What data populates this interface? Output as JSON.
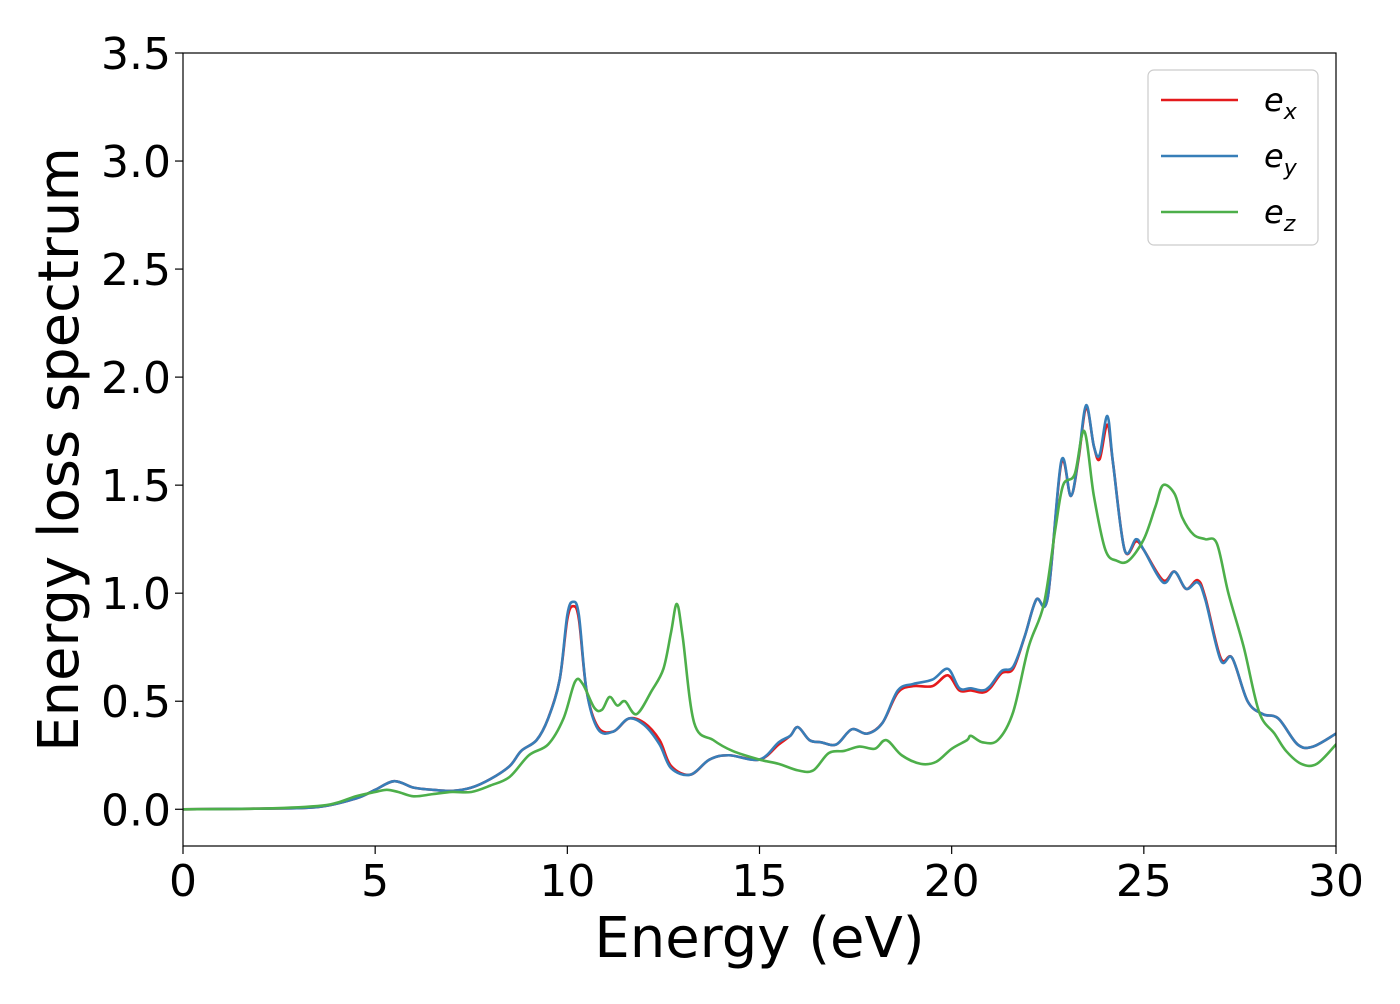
{
  "chart_data": {
    "type": "line",
    "xlabel": "Energy (eV)",
    "ylabel": "Energy loss spectrum",
    "xlim": [
      0,
      30
    ],
    "ylim": [
      -0.17,
      3.5
    ],
    "xticks": [
      0,
      5,
      10,
      15,
      20,
      25,
      30
    ],
    "yticks": [
      0.0,
      0.5,
      1.0,
      1.5,
      2.0,
      2.5,
      3.0,
      3.5
    ],
    "xtick_labels": [
      "0",
      "5",
      "10",
      "15",
      "20",
      "25",
      "30"
    ],
    "ytick_labels": [
      "0.0",
      "0.5",
      "1.0",
      "1.5",
      "2.0",
      "2.5",
      "3.0",
      "3.5"
    ],
    "grid": false,
    "legend": {
      "position": "top-right",
      "entries": [
        {
          "base": "e",
          "sub": "x",
          "color": "#e41a1c"
        },
        {
          "base": "e",
          "sub": "y",
          "color": "#377eb8"
        },
        {
          "base": "e",
          "sub": "z",
          "color": "#4daf4a"
        }
      ]
    },
    "series": [
      {
        "name": "e_x",
        "color": "#e41a1c",
        "points": [
          [
            0,
            0
          ],
          [
            2,
            0.003
          ],
          [
            3.5,
            0.01
          ],
          [
            4.5,
            0.05
          ],
          [
            5,
            0.09
          ],
          [
            5.5,
            0.13
          ],
          [
            6,
            0.1
          ],
          [
            6.5,
            0.09
          ],
          [
            7,
            0.085
          ],
          [
            7.5,
            0.1
          ],
          [
            8,
            0.14
          ],
          [
            8.5,
            0.2
          ],
          [
            8.8,
            0.27
          ],
          [
            9.2,
            0.32
          ],
          [
            9.5,
            0.42
          ],
          [
            9.8,
            0.6
          ],
          [
            10.0,
            0.88
          ],
          [
            10.15,
            0.94
          ],
          [
            10.3,
            0.88
          ],
          [
            10.5,
            0.55
          ],
          [
            10.8,
            0.38
          ],
          [
            11.2,
            0.36
          ],
          [
            11.6,
            0.42
          ],
          [
            12.0,
            0.4
          ],
          [
            12.4,
            0.32
          ],
          [
            12.7,
            0.2
          ],
          [
            13.2,
            0.16
          ],
          [
            13.7,
            0.23
          ],
          [
            14.2,
            0.25
          ],
          [
            15.0,
            0.23
          ],
          [
            15.5,
            0.3
          ],
          [
            15.8,
            0.34
          ],
          [
            16.0,
            0.38
          ],
          [
            16.3,
            0.32
          ],
          [
            16.6,
            0.31
          ],
          [
            17.0,
            0.3
          ],
          [
            17.4,
            0.37
          ],
          [
            17.8,
            0.35
          ],
          [
            18.2,
            0.4
          ],
          [
            18.6,
            0.54
          ],
          [
            19.0,
            0.57
          ],
          [
            19.5,
            0.57
          ],
          [
            19.9,
            0.62
          ],
          [
            20.2,
            0.55
          ],
          [
            20.5,
            0.55
          ],
          [
            20.8,
            0.54
          ],
          [
            21.0,
            0.56
          ],
          [
            21.3,
            0.63
          ],
          [
            21.6,
            0.65
          ],
          [
            21.9,
            0.8
          ],
          [
            22.2,
            0.97
          ],
          [
            22.5,
            0.98
          ],
          [
            22.85,
            1.6
          ],
          [
            23.1,
            1.45
          ],
          [
            23.3,
            1.62
          ],
          [
            23.5,
            1.86
          ],
          [
            23.7,
            1.68
          ],
          [
            23.85,
            1.62
          ],
          [
            24.05,
            1.78
          ],
          [
            24.2,
            1.6
          ],
          [
            24.5,
            1.2
          ],
          [
            24.8,
            1.24
          ],
          [
            25.0,
            1.2
          ],
          [
            25.5,
            1.06
          ],
          [
            25.8,
            1.1
          ],
          [
            26.1,
            1.02
          ],
          [
            26.4,
            1.06
          ],
          [
            26.6,
            0.98
          ],
          [
            27.0,
            0.7
          ],
          [
            27.3,
            0.7
          ],
          [
            27.7,
            0.5
          ],
          [
            28.1,
            0.44
          ],
          [
            28.5,
            0.42
          ],
          [
            29.0,
            0.3
          ],
          [
            29.4,
            0.29
          ],
          [
            30,
            0.35
          ]
        ]
      },
      {
        "name": "e_y",
        "color": "#377eb8",
        "points": [
          [
            0,
            0
          ],
          [
            2,
            0.003
          ],
          [
            3.5,
            0.01
          ],
          [
            4.5,
            0.05
          ],
          [
            5,
            0.09
          ],
          [
            5.5,
            0.13
          ],
          [
            6,
            0.1
          ],
          [
            6.5,
            0.09
          ],
          [
            7,
            0.085
          ],
          [
            7.5,
            0.1
          ],
          [
            8,
            0.14
          ],
          [
            8.5,
            0.2
          ],
          [
            8.8,
            0.27
          ],
          [
            9.2,
            0.32
          ],
          [
            9.5,
            0.42
          ],
          [
            9.8,
            0.6
          ],
          [
            10.0,
            0.9
          ],
          [
            10.15,
            0.96
          ],
          [
            10.3,
            0.9
          ],
          [
            10.5,
            0.55
          ],
          [
            10.8,
            0.37
          ],
          [
            11.2,
            0.36
          ],
          [
            11.6,
            0.42
          ],
          [
            12.0,
            0.39
          ],
          [
            12.4,
            0.3
          ],
          [
            12.7,
            0.19
          ],
          [
            13.2,
            0.16
          ],
          [
            13.7,
            0.23
          ],
          [
            14.2,
            0.25
          ],
          [
            15.0,
            0.23
          ],
          [
            15.5,
            0.31
          ],
          [
            15.8,
            0.34
          ],
          [
            16.0,
            0.38
          ],
          [
            16.3,
            0.32
          ],
          [
            16.6,
            0.31
          ],
          [
            17.0,
            0.3
          ],
          [
            17.4,
            0.37
          ],
          [
            17.8,
            0.35
          ],
          [
            18.2,
            0.4
          ],
          [
            18.6,
            0.55
          ],
          [
            19.0,
            0.58
          ],
          [
            19.5,
            0.6
          ],
          [
            19.9,
            0.65
          ],
          [
            20.2,
            0.56
          ],
          [
            20.5,
            0.56
          ],
          [
            20.8,
            0.55
          ],
          [
            21.0,
            0.57
          ],
          [
            21.3,
            0.64
          ],
          [
            21.6,
            0.66
          ],
          [
            21.9,
            0.8
          ],
          [
            22.2,
            0.97
          ],
          [
            22.5,
            0.98
          ],
          [
            22.85,
            1.61
          ],
          [
            23.1,
            1.45
          ],
          [
            23.3,
            1.63
          ],
          [
            23.5,
            1.87
          ],
          [
            23.7,
            1.68
          ],
          [
            23.85,
            1.64
          ],
          [
            24.05,
            1.82
          ],
          [
            24.2,
            1.6
          ],
          [
            24.5,
            1.2
          ],
          [
            24.8,
            1.25
          ],
          [
            25.0,
            1.2
          ],
          [
            25.5,
            1.05
          ],
          [
            25.8,
            1.1
          ],
          [
            26.1,
            1.02
          ],
          [
            26.4,
            1.05
          ],
          [
            26.6,
            0.97
          ],
          [
            27.0,
            0.69
          ],
          [
            27.3,
            0.7
          ],
          [
            27.7,
            0.5
          ],
          [
            28.1,
            0.44
          ],
          [
            28.5,
            0.42
          ],
          [
            29.0,
            0.3
          ],
          [
            29.4,
            0.29
          ],
          [
            30,
            0.35
          ]
        ]
      },
      {
        "name": "e_z",
        "color": "#4daf4a",
        "points": [
          [
            0,
            0
          ],
          [
            2,
            0.003
          ],
          [
            3.5,
            0.015
          ],
          [
            4.0,
            0.03
          ],
          [
            4.5,
            0.06
          ],
          [
            5,
            0.08
          ],
          [
            5.3,
            0.09
          ],
          [
            5.6,
            0.08
          ],
          [
            6.0,
            0.06
          ],
          [
            6.5,
            0.07
          ],
          [
            7.0,
            0.08
          ],
          [
            7.5,
            0.08
          ],
          [
            8,
            0.11
          ],
          [
            8.5,
            0.15
          ],
          [
            9.0,
            0.25
          ],
          [
            9.5,
            0.3
          ],
          [
            9.9,
            0.42
          ],
          [
            10.2,
            0.59
          ],
          [
            10.4,
            0.58
          ],
          [
            10.7,
            0.47
          ],
          [
            10.9,
            0.46
          ],
          [
            11.1,
            0.52
          ],
          [
            11.3,
            0.48
          ],
          [
            11.5,
            0.5
          ],
          [
            11.8,
            0.44
          ],
          [
            12.2,
            0.55
          ],
          [
            12.5,
            0.65
          ],
          [
            12.7,
            0.82
          ],
          [
            12.85,
            0.95
          ],
          [
            13.0,
            0.8
          ],
          [
            13.3,
            0.4
          ],
          [
            13.8,
            0.32
          ],
          [
            14.3,
            0.27
          ],
          [
            15.0,
            0.23
          ],
          [
            15.5,
            0.21
          ],
          [
            16.0,
            0.18
          ],
          [
            16.4,
            0.18
          ],
          [
            16.8,
            0.26
          ],
          [
            17.2,
            0.27
          ],
          [
            17.6,
            0.29
          ],
          [
            18.0,
            0.28
          ],
          [
            18.3,
            0.32
          ],
          [
            18.7,
            0.25
          ],
          [
            19.2,
            0.21
          ],
          [
            19.6,
            0.22
          ],
          [
            20.0,
            0.28
          ],
          [
            20.4,
            0.32
          ],
          [
            20.5,
            0.34
          ],
          [
            20.8,
            0.31
          ],
          [
            21.2,
            0.32
          ],
          [
            21.6,
            0.45
          ],
          [
            22.0,
            0.75
          ],
          [
            22.4,
            0.95
          ],
          [
            22.7,
            1.3
          ],
          [
            22.9,
            1.5
          ],
          [
            23.2,
            1.55
          ],
          [
            23.45,
            1.75
          ],
          [
            23.7,
            1.45
          ],
          [
            24.0,
            1.2
          ],
          [
            24.3,
            1.15
          ],
          [
            24.6,
            1.15
          ],
          [
            25.0,
            1.25
          ],
          [
            25.3,
            1.4
          ],
          [
            25.5,
            1.5
          ],
          [
            25.8,
            1.46
          ],
          [
            26.0,
            1.35
          ],
          [
            26.3,
            1.27
          ],
          [
            26.6,
            1.25
          ],
          [
            26.9,
            1.23
          ],
          [
            27.2,
            1.0
          ],
          [
            27.6,
            0.75
          ],
          [
            28.0,
            0.45
          ],
          [
            28.4,
            0.35
          ],
          [
            28.7,
            0.27
          ],
          [
            29.1,
            0.21
          ],
          [
            29.5,
            0.21
          ],
          [
            30,
            0.3
          ]
        ]
      }
    ]
  }
}
